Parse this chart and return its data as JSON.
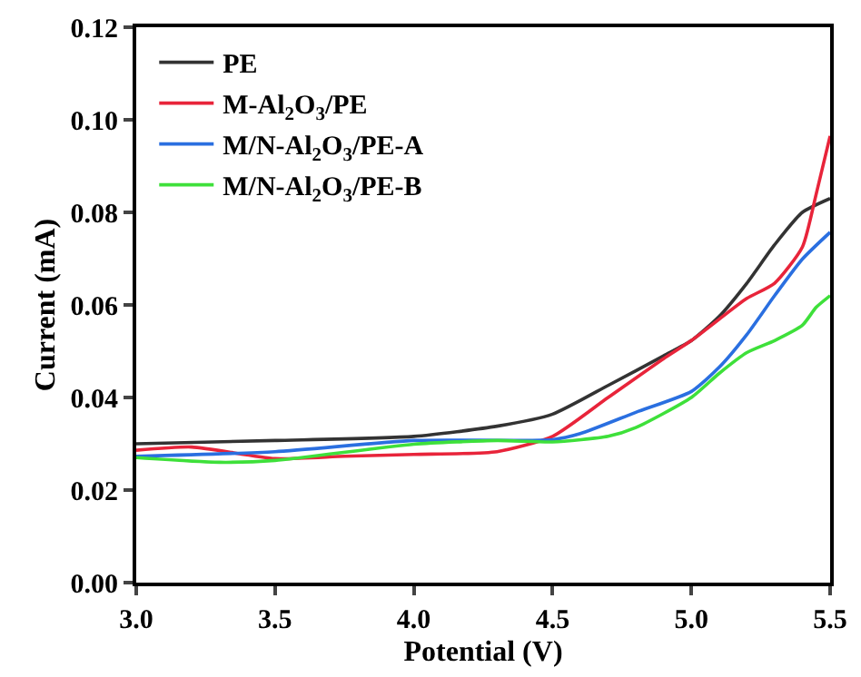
{
  "chart_data": {
    "type": "line",
    "xlabel": "Potential (V)",
    "ylabel": "Current (mA)",
    "xlim": [
      3.0,
      5.5
    ],
    "xticks": [
      {
        "value": 3.0,
        "label": "3.0"
      },
      {
        "value": 3.5,
        "label": "3.5"
      },
      {
        "value": 4.0,
        "label": "4.0"
      },
      {
        "value": 4.5,
        "label": "4.5"
      },
      {
        "value": 5.0,
        "label": "5.0"
      },
      {
        "value": 5.5,
        "label": "5.5"
      }
    ],
    "ylim": [
      0,
      0.12
    ],
    "yticks": [
      {
        "value": 0,
        "label": "0.00"
      },
      {
        "value": 0.02,
        "label": "0.02"
      },
      {
        "value": 0.04,
        "label": "0.04"
      },
      {
        "value": 0.06,
        "label": "0.06"
      },
      {
        "value": 0.08,
        "label": "0.08"
      },
      {
        "value": 0.1,
        "label": "0.10"
      },
      {
        "value": 0.12,
        "label": "0.12"
      }
    ],
    "legend": "top left",
    "marker": "none",
    "line_style": "solid",
    "series": [
      {
        "name": "PE",
        "color": "#333333",
        "x": [
          3.0,
          3.5,
          4.0,
          4.3,
          4.5,
          4.7,
          4.9,
          5.0,
          5.1,
          5.2,
          5.3,
          5.4,
          5.5
        ],
        "values": [
          0.03,
          0.0307,
          0.0316,
          0.0338,
          0.0364,
          0.0426,
          0.049,
          0.0523,
          0.0575,
          0.0647,
          0.073,
          0.08,
          0.083
        ]
      },
      {
        "name": "M-Al$_{2}$O$_{3}$/PE",
        "color": "#e8243a",
        "x": [
          3.0,
          3.2,
          3.5,
          3.75,
          4.0,
          4.3,
          4.5,
          4.7,
          4.9,
          5.0,
          5.1,
          5.2,
          5.3,
          5.4,
          5.45,
          5.5
        ],
        "values": [
          0.0286,
          0.0293,
          0.0268,
          0.0273,
          0.0277,
          0.0283,
          0.0316,
          0.04,
          0.0484,
          0.0523,
          0.0569,
          0.0614,
          0.0647,
          0.0725,
          0.084,
          0.0965
        ]
      },
      {
        "name": "M/N-Al$_{2}$O$_{3}$/PE-A",
        "color": "#2a6fe0",
        "x": [
          3.0,
          3.5,
          4.0,
          4.5,
          4.6,
          4.8,
          5.0,
          5.1,
          5.2,
          5.3,
          5.4,
          5.5
        ],
        "values": [
          0.0273,
          0.0283,
          0.0307,
          0.0309,
          0.0322,
          0.0368,
          0.0413,
          0.0465,
          0.0536,
          0.062,
          0.0699,
          0.0757
        ]
      },
      {
        "name": "M/N-Al$_{2}$O$_{3}$/PE-B",
        "color": "#3ee03a",
        "x": [
          3.0,
          3.3,
          3.5,
          4.0,
          4.3,
          4.5,
          4.7,
          4.8,
          5.0,
          5.1,
          5.2,
          5.3,
          5.4,
          5.45,
          5.5
        ],
        "values": [
          0.027,
          0.026,
          0.0264,
          0.0299,
          0.0307,
          0.0304,
          0.0316,
          0.0335,
          0.04,
          0.0452,
          0.0497,
          0.0523,
          0.0556,
          0.0595,
          0.062
        ]
      }
    ]
  }
}
